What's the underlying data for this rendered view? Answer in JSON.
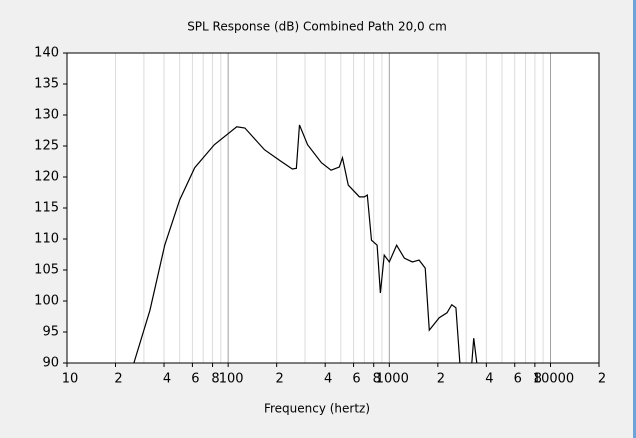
{
  "chart_data": {
    "type": "line",
    "title": "SPL Response (dB)   Combined   Path 20,0 cm",
    "xlabel": "Frequency (hertz)",
    "x": [
      26,
      32.7,
      40.4,
      50,
      62,
      82,
      113,
      127,
      168,
      208,
      250,
      265,
      277,
      311,
      379,
      435,
      489,
      512,
      556,
      652,
      700,
      730,
      775,
      840,
      880,
      930,
      1000,
      1110,
      1240,
      1390,
      1530,
      1670,
      1770,
      2040,
      2280,
      2440,
      2590,
      2740,
      3000,
      3250,
      3340,
      3490
    ],
    "values": [
      90,
      98.5,
      109,
      116.3,
      121.5,
      125.2,
      128.1,
      127.9,
      124.4,
      122.7,
      121.3,
      121.4,
      128.4,
      125.2,
      122.3,
      121.1,
      121.6,
      123.1,
      118.7,
      116.8,
      116.8,
      117.1,
      109.8,
      109,
      101.3,
      107.4,
      106.3,
      109,
      106.9,
      106.3,
      106.6,
      105.3,
      95.3,
      97.3,
      98.1,
      99.4,
      98.9,
      90,
      null,
      90,
      94,
      90
    ],
    "color": "#000000",
    "log_x": true,
    "xlim": [
      10,
      20000
    ],
    "ylim": [
      90,
      140
    ],
    "yticks": [
      90,
      95,
      100,
      105,
      110,
      115,
      120,
      125,
      130,
      135,
      140
    ],
    "xticks": [
      10,
      {
        "value": 20,
        "label": "2"
      },
      {
        "value": 40,
        "label": "4"
      },
      {
        "value": 60,
        "label": "6"
      },
      {
        "value": 80,
        "label": "8"
      },
      100,
      {
        "value": 200,
        "label": "2"
      },
      {
        "value": 400,
        "label": "4"
      },
      {
        "value": 600,
        "label": "6"
      },
      {
        "value": 800,
        "label": "8"
      },
      1000,
      {
        "value": 2000,
        "label": "2"
      },
      {
        "value": 4000,
        "label": "4"
      },
      {
        "value": 6000,
        "label": "6"
      },
      {
        "value": 8000,
        "label": "8"
      },
      10000,
      {
        "value": 20000,
        "label": "2"
      }
    ],
    "xgrid": [
      10,
      20,
      30,
      40,
      50,
      60,
      70,
      80,
      90,
      100,
      200,
      300,
      400,
      500,
      600,
      700,
      800,
      900,
      1000,
      2000,
      3000,
      4000,
      5000,
      6000,
      7000,
      8000,
      9000,
      10000,
      20000
    ],
    "grid": true
  }
}
